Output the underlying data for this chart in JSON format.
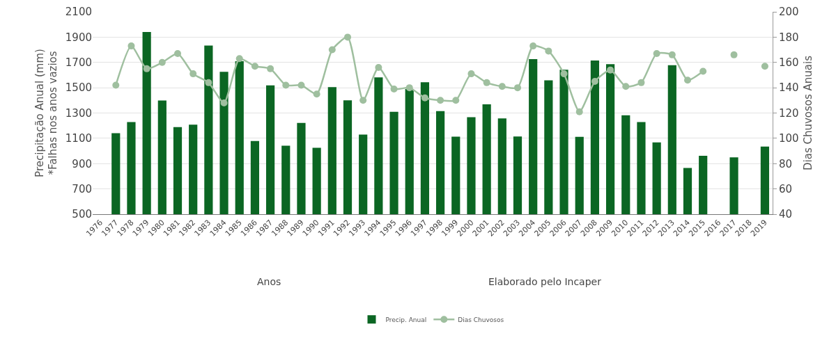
{
  "chart_data": {
    "type": "bar",
    "xlabel": "Anos",
    "ylabel": "Precipitação Anual (mm)\n*Falhas nos anos vazios",
    "y2label": "Dias Chuvosos Anuais",
    "annotations": [
      "Elaborado pelo Incaper"
    ],
    "categories": [
      "1976",
      "1977",
      "1978",
      "1979",
      "1980",
      "1981",
      "1982",
      "1983",
      "1984",
      "1985",
      "1986",
      "1987",
      "1988",
      "1989",
      "1990",
      "1991",
      "1992",
      "1993",
      "1994",
      "1995",
      "1996",
      "1997",
      "1998",
      "1999",
      "2000",
      "2001",
      "2002",
      "2003",
      "2004",
      "2005",
      "2006",
      "2007",
      "2008",
      "2009",
      "2010",
      "2011",
      "2012",
      "2013",
      "2014",
      "2015",
      "2016",
      "2017",
      "2018",
      "2019"
    ],
    "series": [
      {
        "name": "Precip. Anual",
        "color": "#0b6623",
        "values": [
          null,
          1140,
          1229,
          1941,
          1399,
          1189,
          1208,
          1833,
          1626,
          1710,
          1079,
          1518,
          1042,
          1222,
          1025,
          1505,
          1401,
          1129,
          1582,
          1309,
          1490,
          1543,
          1315,
          1113,
          1267,
          1369,
          1257,
          1115,
          1726,
          1558,
          1642,
          1111,
          1715,
          1686,
          1282,
          1229,
          1068,
          1678,
          865,
          962,
          null,
          950,
          null,
          1035
        ]
      },
      {
        "name": "Dias Chuvosos",
        "type": "line",
        "axis": "y2",
        "color": "#9fbf9f",
        "marker": "circle",
        "values": [
          null,
          142,
          173,
          155,
          160,
          167,
          151,
          144,
          128,
          163,
          157,
          155,
          142,
          142,
          135,
          170,
          180,
          130,
          156,
          139,
          140,
          132,
          130,
          130,
          151,
          144,
          141,
          140,
          173,
          169,
          151,
          121,
          145,
          154,
          141,
          144,
          167,
          166,
          146,
          153,
          null,
          166,
          null,
          157
        ]
      }
    ],
    "ylim": [
      500,
      2100
    ],
    "yticks": [
      500,
      700,
      900,
      1100,
      1300,
      1500,
      1700,
      1900,
      2100
    ],
    "y2lim": [
      40,
      200
    ],
    "y2ticks": [
      40,
      60,
      80,
      100,
      120,
      140,
      160,
      180,
      200
    ],
    "grid": "y",
    "legend": "bottom"
  }
}
